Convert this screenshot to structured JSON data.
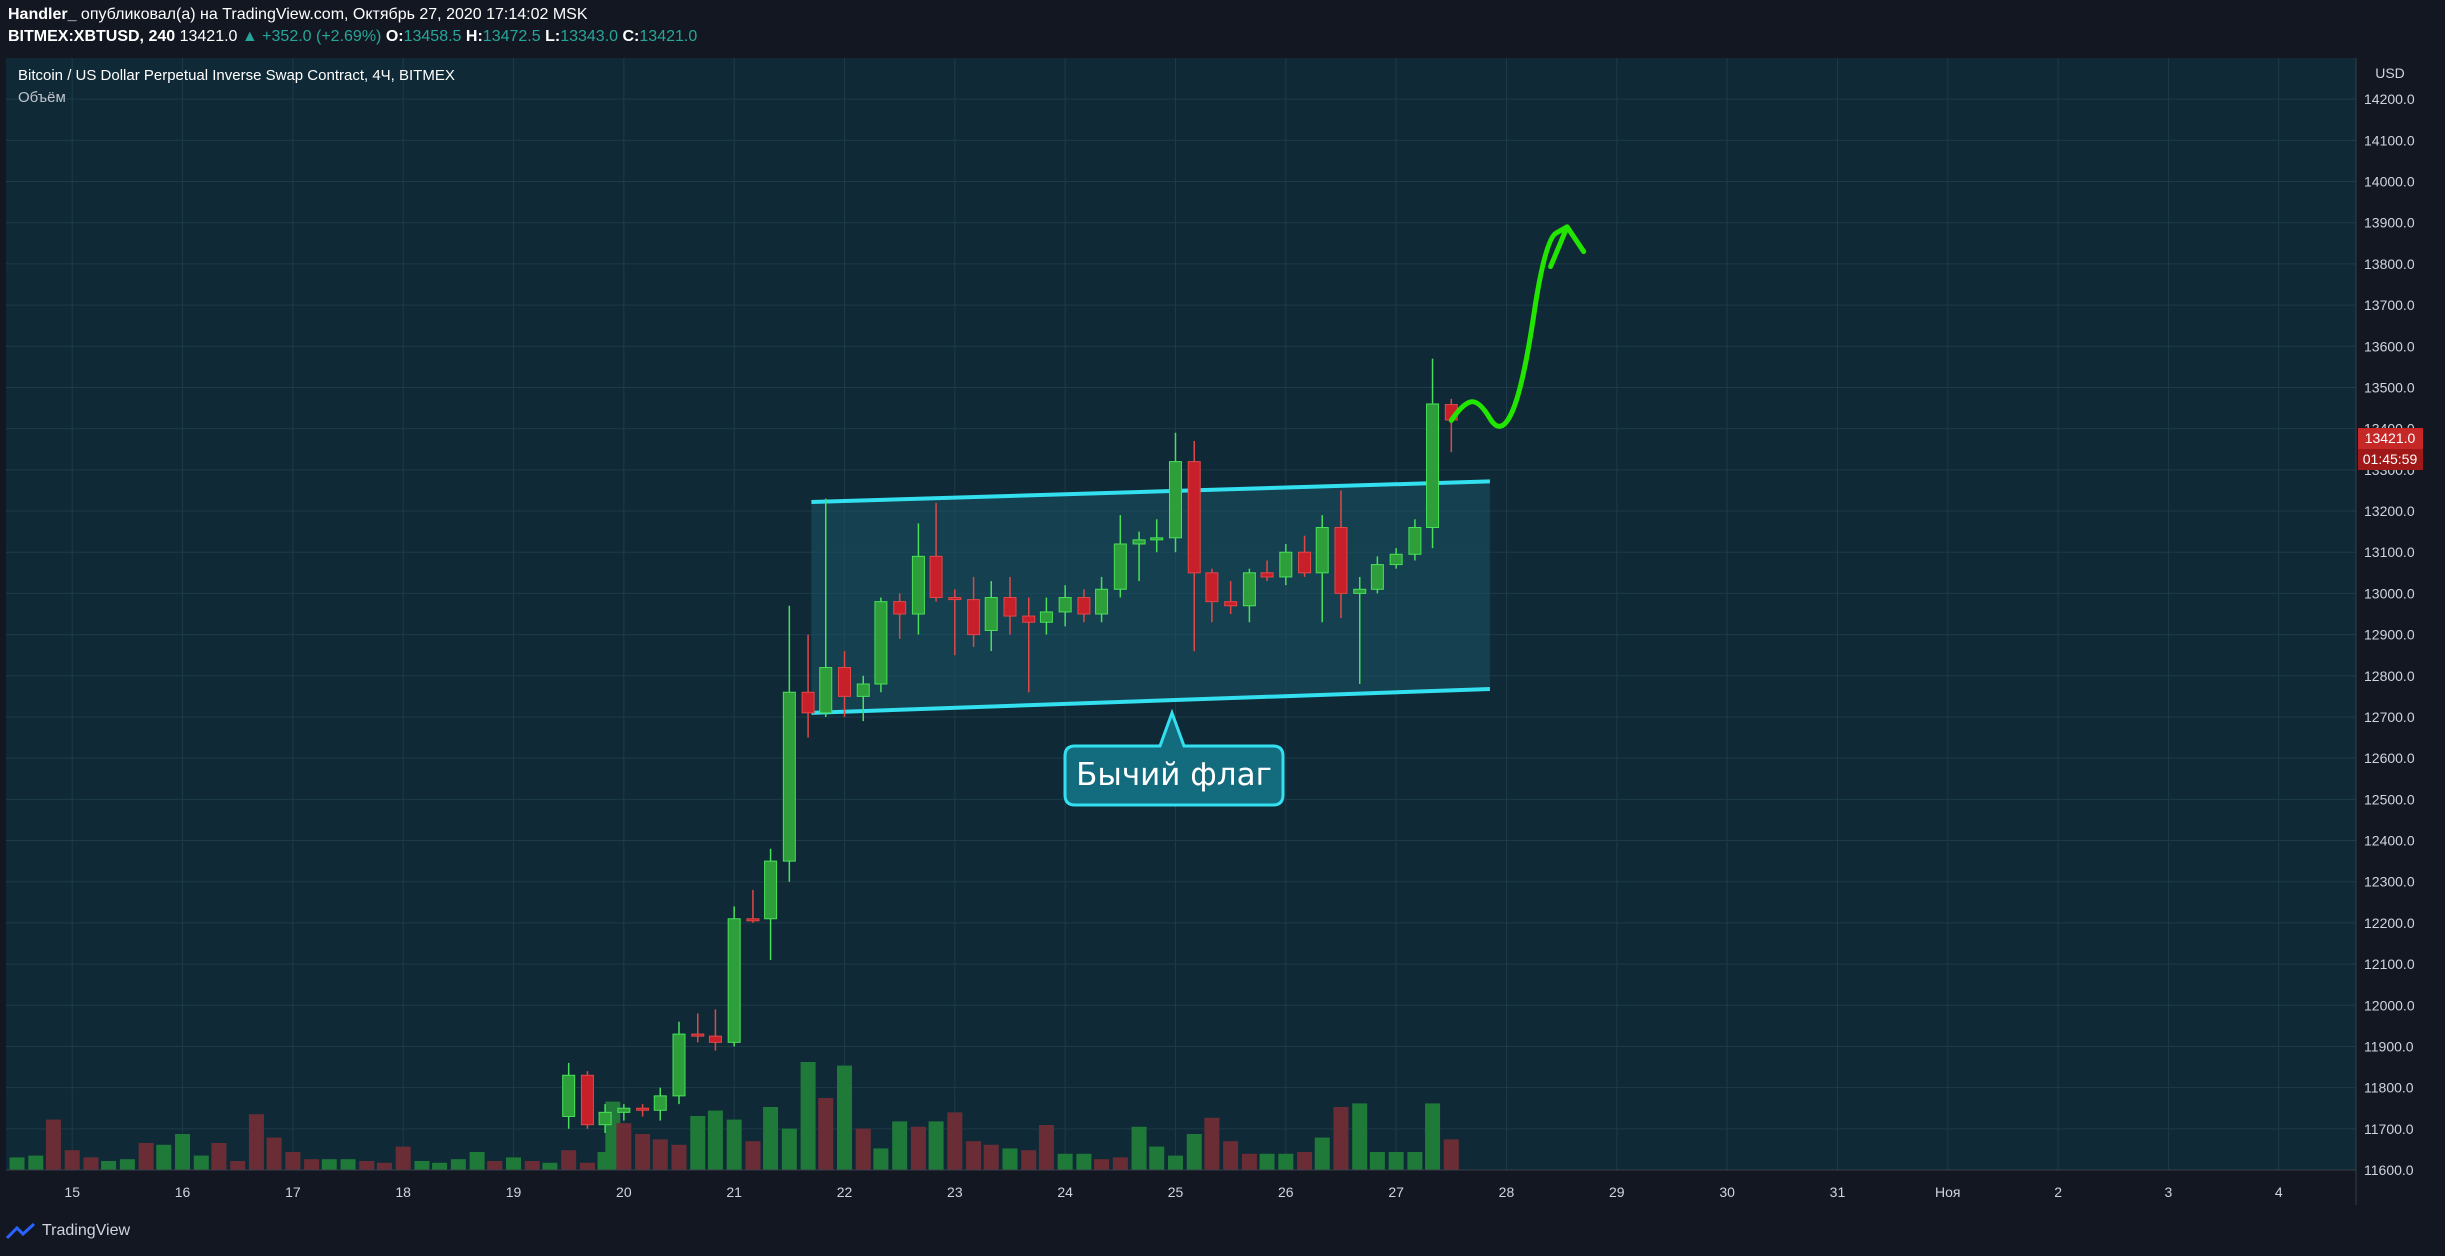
{
  "header": {
    "user": "Handler_",
    "published": "опубликовал(а) на TradingView.com, Октябрь 27, 2020 17:14:02 MSK",
    "symbol": "BITMEX:XBTUSD, 240",
    "last": "13421.0",
    "change": "▲ +352.0 (+2.69%)",
    "o_label": "O:",
    "o_value": "13458.5",
    "h_label": "H:",
    "h_value": "13472.5",
    "l_label": "L:",
    "l_value": "13343.0",
    "c_label": "C:",
    "c_value": "13421.0"
  },
  "legend": {
    "title": "Bitcoin / US Dollar Perpetual Inverse Swap Contract, 4Ч, BITMEX",
    "volume": "Объём"
  },
  "price_axis": {
    "currency": "USD",
    "current_price": "13421.0",
    "countdown": "01:45:59"
  },
  "annotation": {
    "label": "Бычий флаг"
  },
  "footer": {
    "brand": "TradingView"
  },
  "colors": {
    "up": "#26a69a",
    "down": "#ef5350",
    "pane": "#0f2a36",
    "channel": "#33e0f0",
    "arrow": "#22e600",
    "candle_up": "#2e9e3a",
    "candle_down": "#c8202a"
  },
  "chart_data": {
    "type": "candlestick",
    "title": "Bitcoin / US Dollar Perpetual Inverse Swap Contract, 4Ч, BITMEX",
    "ylim": [
      11600,
      14300
    ],
    "y_ticks": [
      11600,
      11700,
      11800,
      11900,
      12000,
      12100,
      12200,
      12300,
      12400,
      12500,
      12600,
      12700,
      12800,
      12900,
      13000,
      13100,
      13200,
      13300,
      13400,
      13500,
      13600,
      13700,
      13800,
      13900,
      14000,
      14100,
      14200
    ],
    "x_ticks": [
      "15",
      "16",
      "17",
      "18",
      "19",
      "20",
      "21",
      "22",
      "23",
      "24",
      "25",
      "26",
      "27",
      "28",
      "29",
      "30",
      "31",
      "Ноя",
      "2",
      "3",
      "4"
    ],
    "x_domain": [
      14.4,
      35.7
    ],
    "candles": [
      {
        "t": 19.5,
        "o": 11730,
        "h": 11860,
        "l": 11700,
        "c": 11830
      },
      {
        "t": 19.67,
        "o": 11830,
        "h": 11840,
        "l": 11700,
        "c": 11710
      },
      {
        "t": 19.83,
        "o": 11710,
        "h": 11760,
        "l": 11690,
        "c": 11740
      },
      {
        "t": 20.0,
        "o": 11740,
        "h": 11760,
        "l": 11720,
        "c": 11750
      },
      {
        "t": 20.17,
        "o": 11750,
        "h": 11760,
        "l": 11730,
        "c": 11745
      },
      {
        "t": 20.33,
        "o": 11745,
        "h": 11800,
        "l": 11720,
        "c": 11780
      },
      {
        "t": 20.5,
        "o": 11780,
        "h": 11960,
        "l": 11760,
        "c": 11930
      },
      {
        "t": 20.67,
        "o": 11930,
        "h": 11980,
        "l": 11910,
        "c": 11925
      },
      {
        "t": 20.83,
        "o": 11925,
        "h": 11990,
        "l": 11890,
        "c": 11910
      },
      {
        "t": 21.0,
        "o": 11910,
        "h": 12240,
        "l": 11900,
        "c": 12210
      },
      {
        "t": 21.17,
        "o": 12210,
        "h": 12280,
        "l": 12200,
        "c": 12205
      },
      {
        "t": 21.33,
        "o": 12210,
        "h": 12380,
        "l": 12110,
        "c": 12350
      },
      {
        "t": 21.5,
        "o": 12350,
        "h": 12970,
        "l": 12300,
        "c": 12760
      },
      {
        "t": 21.67,
        "o": 12760,
        "h": 12900,
        "l": 12650,
        "c": 12710
      },
      {
        "t": 21.83,
        "o": 12710,
        "h": 13230,
        "l": 12700,
        "c": 12820
      },
      {
        "t": 22.0,
        "o": 12820,
        "h": 12860,
        "l": 12700,
        "c": 12750
      },
      {
        "t": 22.17,
        "o": 12750,
        "h": 12800,
        "l": 12690,
        "c": 12780
      },
      {
        "t": 22.33,
        "o": 12780,
        "h": 12990,
        "l": 12760,
        "c": 12980
      },
      {
        "t": 22.5,
        "o": 12980,
        "h": 13000,
        "l": 12890,
        "c": 12950
      },
      {
        "t": 22.67,
        "o": 12950,
        "h": 13170,
        "l": 12900,
        "c": 13090
      },
      {
        "t": 22.83,
        "o": 13090,
        "h": 13220,
        "l": 12980,
        "c": 12990
      },
      {
        "t": 23.0,
        "o": 12990,
        "h": 13010,
        "l": 12850,
        "c": 12985
      },
      {
        "t": 23.17,
        "o": 12985,
        "h": 13040,
        "l": 12870,
        "c": 12900
      },
      {
        "t": 23.33,
        "o": 12910,
        "h": 13030,
        "l": 12860,
        "c": 12990
      },
      {
        "t": 23.5,
        "o": 12990,
        "h": 13040,
        "l": 12900,
        "c": 12945
      },
      {
        "t": 23.67,
        "o": 12945,
        "h": 12990,
        "l": 12760,
        "c": 12930
      },
      {
        "t": 23.83,
        "o": 12930,
        "h": 12990,
        "l": 12900,
        "c": 12955
      },
      {
        "t": 24.0,
        "o": 12955,
        "h": 13020,
        "l": 12920,
        "c": 12990
      },
      {
        "t": 24.17,
        "o": 12990,
        "h": 13010,
        "l": 12930,
        "c": 12950
      },
      {
        "t": 24.33,
        "o": 12950,
        "h": 13040,
        "l": 12930,
        "c": 13010
      },
      {
        "t": 24.5,
        "o": 13010,
        "h": 13190,
        "l": 12990,
        "c": 13120
      },
      {
        "t": 24.67,
        "o": 13120,
        "h": 13150,
        "l": 13030,
        "c": 13130
      },
      {
        "t": 24.83,
        "o": 13130,
        "h": 13180,
        "l": 13100,
        "c": 13135
      },
      {
        "t": 25.0,
        "o": 13135,
        "h": 13390,
        "l": 13100,
        "c": 13320
      },
      {
        "t": 25.17,
        "o": 13320,
        "h": 13370,
        "l": 12860,
        "c": 13050
      },
      {
        "t": 25.33,
        "o": 13050,
        "h": 13060,
        "l": 12930,
        "c": 12980
      },
      {
        "t": 25.5,
        "o": 12980,
        "h": 13030,
        "l": 12950,
        "c": 12970
      },
      {
        "t": 25.67,
        "o": 12970,
        "h": 13060,
        "l": 12930,
        "c": 13050
      },
      {
        "t": 25.83,
        "o": 13050,
        "h": 13080,
        "l": 13030,
        "c": 13040
      },
      {
        "t": 26.0,
        "o": 13040,
        "h": 13120,
        "l": 13020,
        "c": 13100
      },
      {
        "t": 26.17,
        "o": 13100,
        "h": 13140,
        "l": 13040,
        "c": 13050
      },
      {
        "t": 26.33,
        "o": 13050,
        "h": 13190,
        "l": 12930,
        "c": 13160
      },
      {
        "t": 26.5,
        "o": 13160,
        "h": 13250,
        "l": 12940,
        "c": 13000
      },
      {
        "t": 26.67,
        "o": 13000,
        "h": 13040,
        "l": 12780,
        "c": 13010
      },
      {
        "t": 26.83,
        "o": 13010,
        "h": 13090,
        "l": 13000,
        "c": 13070
      },
      {
        "t": 27.0,
        "o": 13070,
        "h": 13110,
        "l": 13060,
        "c": 13095
      },
      {
        "t": 27.17,
        "o": 13095,
        "h": 13180,
        "l": 13080,
        "c": 13160
      },
      {
        "t": 27.33,
        "o": 13160,
        "h": 13570,
        "l": 13110,
        "c": 13460
      },
      {
        "t": 27.5,
        "o": 13458.5,
        "h": 13472.5,
        "l": 13343,
        "c": 13421
      }
    ],
    "volume": {
      "max_scale": 1,
      "bars": [
        {
          "t": 14.5,
          "v": 0.07,
          "up": true
        },
        {
          "t": 14.67,
          "v": 0.08,
          "up": true
        },
        {
          "t": 14.83,
          "v": 0.28,
          "up": false
        },
        {
          "t": 15.0,
          "v": 0.11,
          "up": false
        },
        {
          "t": 15.17,
          "v": 0.07,
          "up": false
        },
        {
          "t": 15.33,
          "v": 0.05,
          "up": true
        },
        {
          "t": 15.5,
          "v": 0.06,
          "up": true
        },
        {
          "t": 15.67,
          "v": 0.15,
          "up": false
        },
        {
          "t": 15.83,
          "v": 0.14,
          "up": true
        },
        {
          "t": 16.0,
          "v": 0.2,
          "up": true
        },
        {
          "t": 16.17,
          "v": 0.08,
          "up": true
        },
        {
          "t": 16.33,
          "v": 0.15,
          "up": false
        },
        {
          "t": 16.5,
          "v": 0.05,
          "up": false
        },
        {
          "t": 16.67,
          "v": 0.31,
          "up": false
        },
        {
          "t": 16.83,
          "v": 0.18,
          "up": false
        },
        {
          "t": 17.0,
          "v": 0.1,
          "up": false
        },
        {
          "t": 17.17,
          "v": 0.06,
          "up": false
        },
        {
          "t": 17.33,
          "v": 0.06,
          "up": true
        },
        {
          "t": 17.5,
          "v": 0.06,
          "up": true
        },
        {
          "t": 17.67,
          "v": 0.05,
          "up": false
        },
        {
          "t": 17.83,
          "v": 0.04,
          "up": false
        },
        {
          "t": 18.0,
          "v": 0.13,
          "up": false
        },
        {
          "t": 18.17,
          "v": 0.05,
          "up": true
        },
        {
          "t": 18.33,
          "v": 0.04,
          "up": true
        },
        {
          "t": 18.5,
          "v": 0.06,
          "up": true
        },
        {
          "t": 18.67,
          "v": 0.1,
          "up": true
        },
        {
          "t": 18.83,
          "v": 0.05,
          "up": false
        },
        {
          "t": 19.0,
          "v": 0.07,
          "up": true
        },
        {
          "t": 19.17,
          "v": 0.05,
          "up": false
        },
        {
          "t": 19.33,
          "v": 0.04,
          "up": true
        },
        {
          "t": 19.5,
          "v": 0.11,
          "up": false
        },
        {
          "t": 19.67,
          "v": 0.04,
          "up": false
        },
        {
          "t": 19.83,
          "v": 0.1,
          "up": true
        },
        {
          "t": 19.9,
          "v": 0.38,
          "up": true
        },
        {
          "t": 20.0,
          "v": 0.26,
          "up": false
        },
        {
          "t": 20.17,
          "v": 0.2,
          "up": false
        },
        {
          "t": 20.33,
          "v": 0.17,
          "up": false
        },
        {
          "t": 20.5,
          "v": 0.14,
          "up": false
        },
        {
          "t": 20.67,
          "v": 0.3,
          "up": true
        },
        {
          "t": 20.83,
          "v": 0.33,
          "up": true
        },
        {
          "t": 21.0,
          "v": 0.28,
          "up": true
        },
        {
          "t": 21.17,
          "v": 0.16,
          "up": false
        },
        {
          "t": 21.33,
          "v": 0.35,
          "up": true
        },
        {
          "t": 21.5,
          "v": 0.23,
          "up": true
        },
        {
          "t": 21.67,
          "v": 0.6,
          "up": true
        },
        {
          "t": 21.83,
          "v": 0.4,
          "up": false
        },
        {
          "t": 22.0,
          "v": 0.58,
          "up": true
        },
        {
          "t": 22.17,
          "v": 0.23,
          "up": false
        },
        {
          "t": 22.33,
          "v": 0.12,
          "up": true
        },
        {
          "t": 22.5,
          "v": 0.27,
          "up": true
        },
        {
          "t": 22.67,
          "v": 0.24,
          "up": false
        },
        {
          "t": 22.83,
          "v": 0.27,
          "up": true
        },
        {
          "t": 23.0,
          "v": 0.32,
          "up": false
        },
        {
          "t": 23.17,
          "v": 0.16,
          "up": false
        },
        {
          "t": 23.33,
          "v": 0.14,
          "up": false
        },
        {
          "t": 23.5,
          "v": 0.12,
          "up": true
        },
        {
          "t": 23.67,
          "v": 0.11,
          "up": false
        },
        {
          "t": 23.83,
          "v": 0.25,
          "up": false
        },
        {
          "t": 24.0,
          "v": 0.09,
          "up": true
        },
        {
          "t": 24.17,
          "v": 0.09,
          "up": true
        },
        {
          "t": 24.33,
          "v": 0.06,
          "up": false
        },
        {
          "t": 24.5,
          "v": 0.07,
          "up": false
        },
        {
          "t": 24.67,
          "v": 0.24,
          "up": true
        },
        {
          "t": 24.83,
          "v": 0.13,
          "up": true
        },
        {
          "t": 25.0,
          "v": 0.08,
          "up": true
        },
        {
          "t": 25.17,
          "v": 0.2,
          "up": true
        },
        {
          "t": 25.33,
          "v": 0.29,
          "up": false
        },
        {
          "t": 25.5,
          "v": 0.16,
          "up": false
        },
        {
          "t": 25.67,
          "v": 0.09,
          "up": false
        },
        {
          "t": 25.83,
          "v": 0.09,
          "up": true
        },
        {
          "t": 26.0,
          "v": 0.09,
          "up": true
        },
        {
          "t": 26.17,
          "v": 0.1,
          "up": false
        },
        {
          "t": 26.33,
          "v": 0.18,
          "up": true
        },
        {
          "t": 26.5,
          "v": 0.35,
          "up": false
        },
        {
          "t": 26.67,
          "v": 0.37,
          "up": true
        },
        {
          "t": 26.83,
          "v": 0.1,
          "up": true
        },
        {
          "t": 27.0,
          "v": 0.1,
          "up": true
        },
        {
          "t": 27.17,
          "v": 0.1,
          "up": true
        },
        {
          "t": 27.33,
          "v": 0.37,
          "up": true
        },
        {
          "t": 27.5,
          "v": 0.17,
          "up": false
        }
      ]
    },
    "channel": {
      "upper": [
        {
          "t": 21.7,
          "y": 13222
        },
        {
          "t": 27.85,
          "y": 13272
        }
      ],
      "lower": [
        {
          "t": 21.7,
          "y": 12710
        },
        {
          "t": 27.85,
          "y": 12768
        }
      ]
    },
    "projection": [
      {
        "t": 27.5,
        "y": 13420
      },
      {
        "t": 27.6,
        "y": 13460
      },
      {
        "t": 27.75,
        "y": 13470
      },
      {
        "t": 27.95,
        "y": 13380
      },
      {
        "t": 28.15,
        "y": 13500
      },
      {
        "t": 28.35,
        "y": 13860
      },
      {
        "t": 28.55,
        "y": 13890
      },
      {
        "t": 28.7,
        "y": 13830
      }
    ]
  }
}
